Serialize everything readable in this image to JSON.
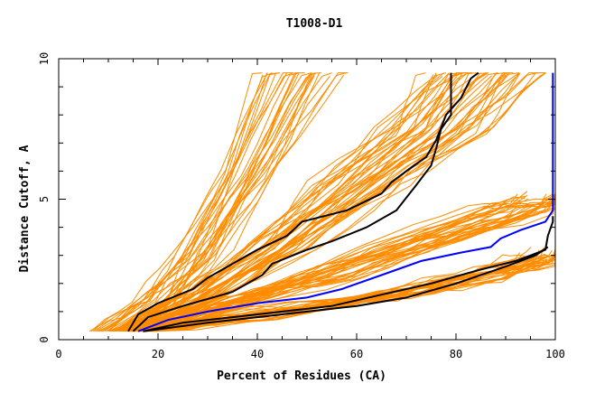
{
  "chart_data": {
    "type": "line",
    "title": "T1008-D1",
    "xlabel": "Percent of Residues (CA)",
    "ylabel": "Distance Cutoff, A",
    "xlim": [
      0,
      100
    ],
    "ylim": [
      0,
      10
    ],
    "xticks": [
      0,
      20,
      40,
      60,
      80,
      100
    ],
    "xtick_labels": [
      "0",
      "20",
      "40",
      "60",
      "80",
      "100"
    ],
    "yticks": [
      0,
      5,
      10
    ],
    "ytick_labels": [
      "0",
      "5",
      "10"
    ],
    "grid": false,
    "legend": "none",
    "colors": {
      "models": "#ff8c00",
      "highlight_black": "#000000",
      "highlight_blue": "#0000ff"
    },
    "band_groups": [
      {
        "color": "#ff8c00",
        "count": 30,
        "start": [
          [
            6,
            0.3
          ],
          [
            16,
            0.3
          ]
        ],
        "knots": [
          [
            20,
            1.4
          ],
          [
            28,
            3.0
          ],
          [
            38,
            6.0
          ],
          [
            48,
            9.5
          ]
        ],
        "spread": 0.16
      },
      {
        "color": "#ff8c00",
        "count": 45,
        "start": [
          [
            10,
            0.3
          ],
          [
            18,
            0.3
          ]
        ],
        "knots": [
          [
            30,
            1.6
          ],
          [
            45,
            3.4
          ],
          [
            60,
            5.5
          ],
          [
            75,
            7.5
          ],
          [
            85,
            9.5
          ]
        ],
        "spread": 0.14
      },
      {
        "color": "#ff8c00",
        "count": 35,
        "start": [
          [
            13,
            0.3
          ],
          [
            20,
            0.3
          ]
        ],
        "knots": [
          [
            35,
            1.3
          ],
          [
            55,
            2.4
          ],
          [
            75,
            3.6
          ],
          [
            92,
            4.6
          ],
          [
            99,
            5.0
          ]
        ],
        "spread": 0.09
      },
      {
        "color": "#ff8c00",
        "count": 30,
        "start": [
          [
            14,
            0.3
          ],
          [
            20,
            0.3
          ]
        ],
        "knots": [
          [
            40,
            0.9
          ],
          [
            65,
            1.6
          ],
          [
            85,
            2.2
          ],
          [
            97,
            2.8
          ],
          [
            99,
            3.0
          ]
        ],
        "spread": 0.05
      }
    ],
    "series": [
      {
        "color": "#000000",
        "points": [
          [
            14,
            0.3
          ],
          [
            16,
            0.9
          ],
          [
            20,
            1.3
          ],
          [
            27,
            1.8
          ],
          [
            30,
            2.2
          ],
          [
            40,
            3.2
          ],
          [
            46,
            3.7
          ],
          [
            49,
            4.2
          ],
          [
            58,
            4.6
          ],
          [
            65,
            5.2
          ],
          [
            67,
            5.6
          ],
          [
            70,
            6.0
          ],
          [
            74,
            6.5
          ],
          [
            76,
            7.1
          ],
          [
            78,
            8.0
          ],
          [
            81,
            8.6
          ],
          [
            83,
            9.3
          ],
          [
            84.5,
            9.5
          ]
        ]
      },
      {
        "color": "#000000",
        "points": [
          [
            15,
            0.3
          ],
          [
            18,
            0.8
          ],
          [
            25,
            1.2
          ],
          [
            35,
            1.7
          ],
          [
            41,
            2.3
          ],
          [
            43,
            2.7
          ],
          [
            50,
            3.2
          ],
          [
            55,
            3.5
          ],
          [
            62,
            4.0
          ],
          [
            68,
            4.6
          ],
          [
            72,
            5.5
          ],
          [
            75,
            6.2
          ],
          [
            76,
            6.8
          ],
          [
            77,
            7.5
          ],
          [
            79,
            8.0
          ],
          [
            79,
            9.5
          ]
        ]
      },
      {
        "color": "#0000ff",
        "points": [
          [
            16,
            0.3
          ],
          [
            22,
            0.7
          ],
          [
            30,
            1.0
          ],
          [
            40,
            1.3
          ],
          [
            50,
            1.5
          ],
          [
            57,
            1.8
          ],
          [
            65,
            2.3
          ],
          [
            73,
            2.8
          ],
          [
            81,
            3.1
          ],
          [
            87,
            3.3
          ],
          [
            89,
            3.6
          ],
          [
            93,
            3.9
          ],
          [
            98,
            4.2
          ],
          [
            99.5,
            4.6
          ],
          [
            99.5,
            9.5
          ]
        ]
      },
      {
        "color": "#000000",
        "points": [
          [
            17,
            0.3
          ],
          [
            25,
            0.6
          ],
          [
            35,
            0.8
          ],
          [
            45,
            1.0
          ],
          [
            55,
            1.2
          ],
          [
            65,
            1.6
          ],
          [
            75,
            2.0
          ],
          [
            85,
            2.5
          ],
          [
            92,
            2.8
          ],
          [
            98,
            3.2
          ],
          [
            98.5,
            3.7
          ],
          [
            99.5,
            4.2
          ],
          [
            99.5,
            4.4
          ]
        ]
      },
      {
        "color": "#000000",
        "points": [
          [
            17,
            0.3
          ],
          [
            30,
            0.6
          ],
          [
            45,
            0.9
          ],
          [
            60,
            1.2
          ],
          [
            70,
            1.5
          ],
          [
            80,
            2.0
          ],
          [
            90,
            2.6
          ],
          [
            96,
            3.0
          ],
          [
            98.5,
            3.3
          ]
        ]
      }
    ]
  }
}
